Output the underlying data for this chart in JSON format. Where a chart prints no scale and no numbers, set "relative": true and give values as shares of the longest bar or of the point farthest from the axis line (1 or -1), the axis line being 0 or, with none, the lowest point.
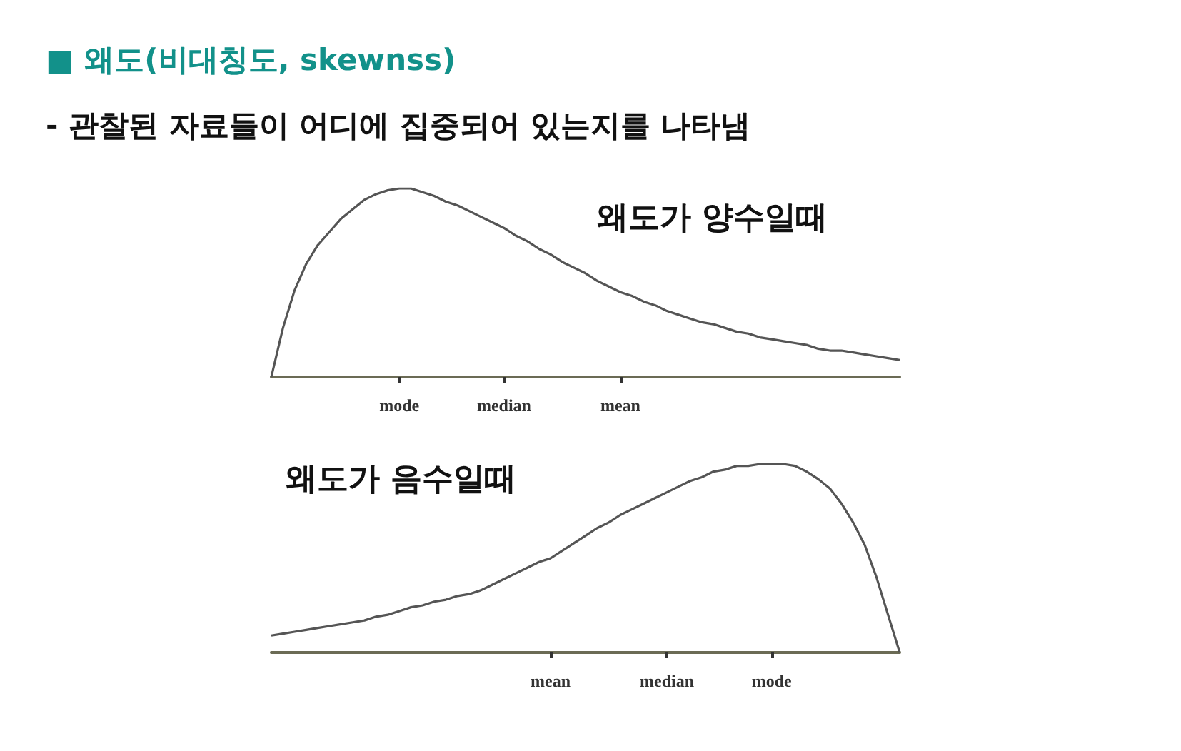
{
  "chart_data": [
    {
      "type": "line",
      "title": "■ 왜도(비대칭도, skewnss)",
      "subtitle": "- 관찰된 자료들이 어디에 집중되어 있는지를 나타냄",
      "relative": true,
      "marker": "none",
      "grid": false,
      "annotations": [
        "왜도가 양수일때"
      ],
      "categories": [
        null,
        null,
        null,
        null,
        null,
        null,
        null,
        null,
        null,
        null,
        null,
        "mode",
        null,
        null,
        null,
        null,
        null,
        null,
        null,
        null,
        "median",
        null,
        null,
        null,
        null,
        null,
        null,
        null,
        null,
        null,
        "mean",
        null,
        null,
        null,
        null,
        null,
        null,
        null,
        null,
        null,
        null,
        null,
        null,
        null,
        null,
        null,
        null,
        null,
        null,
        null,
        null,
        null,
        null,
        null,
        null
      ],
      "series": [
        {
          "color": "#555555",
          "values": [
            0,
            0.26,
            0.46,
            0.6,
            0.7,
            0.77,
            0.84,
            0.89,
            0.94,
            0.97,
            0.99,
            1,
            1,
            0.98,
            0.96,
            0.93,
            0.91,
            0.88,
            0.85,
            0.82,
            0.79,
            0.75,
            0.72,
            0.68,
            0.65,
            0.61,
            0.58,
            0.55,
            0.51,
            0.48,
            0.45,
            0.43,
            0.4,
            0.38,
            0.35,
            0.33,
            0.31,
            0.29,
            0.28,
            0.26,
            0.24,
            0.23,
            0.21,
            0.2,
            0.19,
            0.18,
            0.17,
            0.15,
            0.14,
            0.14,
            0.13,
            0.12,
            0.11,
            0.1,
            0.09
          ]
        }
      ]
    },
    {
      "type": "line",
      "relative": true,
      "marker": "none",
      "grid": false,
      "annotations": [
        "왜도가 음수일때"
      ],
      "categories": [
        null,
        null,
        null,
        null,
        null,
        null,
        null,
        null,
        null,
        null,
        null,
        null,
        null,
        null,
        null,
        null,
        null,
        null,
        null,
        null,
        null,
        null,
        null,
        null,
        "mean",
        null,
        null,
        null,
        null,
        null,
        null,
        null,
        null,
        null,
        "median",
        null,
        null,
        null,
        null,
        null,
        null,
        null,
        null,
        "mode",
        null,
        null,
        null,
        null,
        null,
        null,
        null,
        null,
        null,
        null,
        null
      ],
      "series": [
        {
          "color": "#555555",
          "values": [
            0.09,
            0.1,
            0.11,
            0.12,
            0.13,
            0.14,
            0.15,
            0.16,
            0.17,
            0.19,
            0.2,
            0.22,
            0.24,
            0.25,
            0.27,
            0.28,
            0.3,
            0.31,
            0.33,
            0.36,
            0.39,
            0.42,
            0.45,
            0.48,
            0.5,
            0.54,
            0.58,
            0.62,
            0.66,
            0.69,
            0.73,
            0.76,
            0.79,
            0.82,
            0.85,
            0.88,
            0.91,
            0.93,
            0.96,
            0.97,
            0.99,
            0.99,
            1,
            1,
            1,
            0.99,
            0.96,
            0.92,
            0.87,
            0.79,
            0.69,
            0.57,
            0.4,
            0.2,
            0
          ]
        }
      ]
    }
  ]
}
